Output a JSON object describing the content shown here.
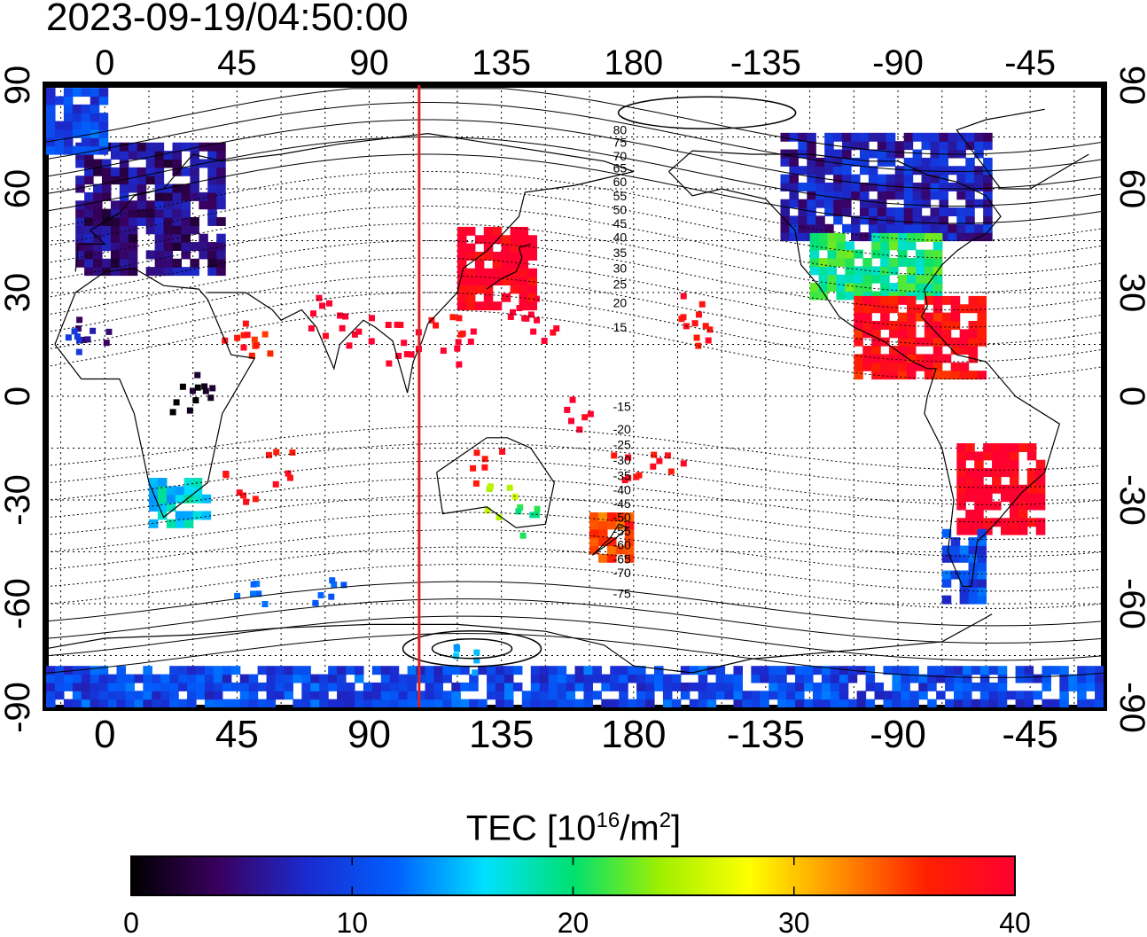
{
  "header": {
    "timestamp": "2023-09-19/04:50:00"
  },
  "map": {
    "projection": "equirectangular",
    "lon_range": [
      -20,
      340
    ],
    "lat_range": [
      -90,
      90
    ],
    "top_axis_ticks": [
      "0",
      "45",
      "90",
      "135",
      "180",
      "-135",
      "-90",
      "-45"
    ],
    "bottom_axis_ticks": [
      "0",
      "45",
      "90",
      "135",
      "180",
      "-135",
      "-90",
      "-45"
    ],
    "lat_ticks": [
      "90",
      "60",
      "30",
      "0",
      "-30",
      "-60",
      "-90"
    ],
    "grid": "dotted every 15 degrees",
    "terminator_longitude": 107,
    "terminator_color": "#e0201e",
    "magnetic_lat_labels": [
      "80",
      "75",
      "70",
      "65",
      "60",
      "55",
      "50",
      "45",
      "40",
      "35",
      "30",
      "25",
      "20",
      "15",
      "-15",
      "-20",
      "-25",
      "-30",
      "-35",
      "-40",
      "-45",
      "-50",
      "-55",
      "-60",
      "-65",
      "-70",
      "-75"
    ]
  },
  "colorbar": {
    "label_main": "TEC  [10",
    "label_sup1": "16",
    "label_mid": "/m",
    "label_sup2": "2",
    "label_end": "]",
    "min": 0,
    "max": 40,
    "ticks": [
      "0",
      "10",
      "20",
      "30",
      "40"
    ],
    "colormap": [
      "#000000",
      "#3a0060",
      "#1a2bd0",
      "#0060ff",
      "#00e0ff",
      "#00e070",
      "#a0f000",
      "#ffff00",
      "#ff9000",
      "#ff2000",
      "#ff0030"
    ]
  },
  "chart_data": {
    "type": "heatmap",
    "title": "2023-09-19/04:50:00",
    "xlabel": "",
    "ylabel": "",
    "colorbar_label": "TEC [10^16/m^2]",
    "value_range": [
      0,
      40
    ],
    "regions": [
      {
        "name": "Europe",
        "lon": [
          -10,
          40
        ],
        "lat": [
          35,
          72
        ],
        "tec": 5
      },
      {
        "name": "Scandinavia / north Atlantic",
        "lon": [
          -20,
          0
        ],
        "lat": [
          70,
          88
        ],
        "tec": 10
      },
      {
        "name": "Eastern Asia / Japan",
        "lon": [
          120,
          145
        ],
        "lat": [
          25,
          48
        ],
        "tec": 40
      },
      {
        "name": "North America (north)",
        "lon": [
          -130,
          -60
        ],
        "lat": [
          45,
          75
        ],
        "tec": 7
      },
      {
        "name": "North America (mid)",
        "lon": [
          -120,
          -75
        ],
        "lat": [
          28,
          45
        ],
        "tec": 20
      },
      {
        "name": "Central America / Caribbean",
        "lon": [
          -105,
          -60
        ],
        "lat": [
          5,
          28
        ],
        "tec": 38
      },
      {
        "name": "South America (central)",
        "lon": [
          -70,
          -40
        ],
        "lat": [
          -40,
          -15
        ],
        "tec": 40
      },
      {
        "name": "South America (south)",
        "lon": [
          -75,
          -60
        ],
        "lat": [
          -60,
          -40
        ],
        "tec": 10
      },
      {
        "name": "Southern Africa",
        "lon": [
          15,
          35
        ],
        "lat": [
          -38,
          -25
        ],
        "tec": 16
      },
      {
        "name": "New Zealand",
        "lon": [
          165,
          180
        ],
        "lat": [
          -48,
          -35
        ],
        "tec": 35
      },
      {
        "name": "Antarctica",
        "lon": [
          -20,
          340
        ],
        "lat": [
          -90,
          -80
        ],
        "tec": 10
      }
    ]
  }
}
